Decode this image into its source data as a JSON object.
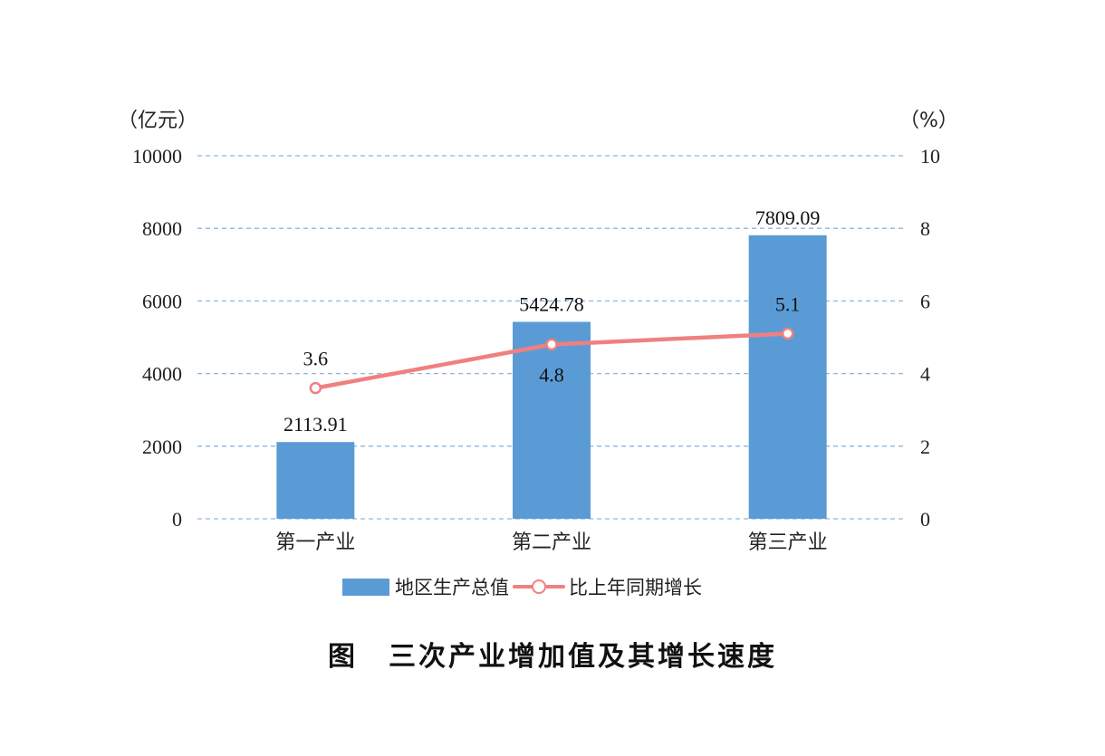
{
  "chart_data": {
    "type": "bar",
    "categories": [
      "第一产业",
      "第二产业",
      "第三产业"
    ],
    "series": [
      {
        "name": "地区生产总值",
        "type": "bar",
        "axis": "left",
        "color": "#5b9bd5",
        "values": [
          2113.91,
          5424.78,
          7809.09
        ]
      },
      {
        "name": "比上年同期增长",
        "type": "line",
        "axis": "right",
        "color": "#f08080",
        "values": [
          3.6,
          4.8,
          5.1
        ]
      }
    ],
    "y_left": {
      "unit": "（亿元）",
      "ylim": [
        0,
        10000
      ],
      "ticks": [
        0,
        2000,
        4000,
        6000,
        8000,
        10000
      ]
    },
    "y_right": {
      "unit": "（%）",
      "ylim": [
        0,
        10
      ],
      "ticks": [
        0,
        2,
        4,
        6,
        8,
        10
      ]
    },
    "grid": "dashed horizontal",
    "legend_position": "bottom"
  },
  "caption": {
    "label": "图",
    "title": "三次产业增加值及其增长速度"
  }
}
